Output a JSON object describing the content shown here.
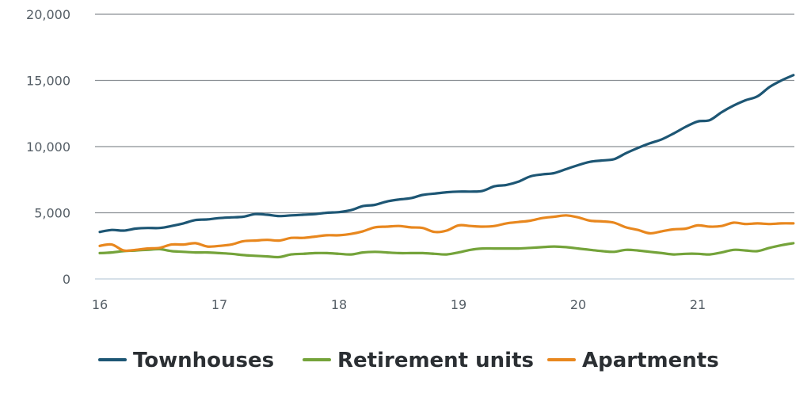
{
  "chart_data": {
    "type": "line",
    "title": "",
    "xlabel": "",
    "ylabel": "",
    "xlim": [
      16,
      21.8
    ],
    "ylim": [
      0,
      20000
    ],
    "x_ticks": [
      "16",
      "17",
      "18",
      "19",
      "20",
      "21"
    ],
    "y_ticks": [
      "0",
      "5,000",
      "10,000",
      "15,000",
      "20,000"
    ],
    "grid": "horizontal",
    "legend_position": "bottom",
    "series": [
      {
        "name": "Townhouses",
        "color": "#1d5674",
        "x": [
          16.0,
          16.1,
          16.2,
          16.3,
          16.4,
          16.5,
          16.6,
          16.7,
          16.8,
          16.9,
          17.0,
          17.1,
          17.2,
          17.3,
          17.4,
          17.5,
          17.6,
          17.7,
          17.8,
          17.9,
          18.0,
          18.1,
          18.2,
          18.3,
          18.4,
          18.5,
          18.6,
          18.7,
          18.8,
          18.9,
          19.0,
          19.1,
          19.2,
          19.3,
          19.4,
          19.5,
          19.6,
          19.7,
          19.8,
          19.9,
          20.0,
          20.1,
          20.2,
          20.3,
          20.4,
          20.5,
          20.6,
          20.7,
          20.8,
          20.9,
          21.0,
          21.1,
          21.2,
          21.3,
          21.4,
          21.5,
          21.6,
          21.7,
          21.8
        ],
        "values": [
          3550,
          3700,
          3650,
          3800,
          3850,
          3850,
          4000,
          4200,
          4450,
          4500,
          4600,
          4650,
          4700,
          4900,
          4850,
          4750,
          4800,
          4850,
          4900,
          5000,
          5050,
          5200,
          5500,
          5600,
          5850,
          6000,
          6100,
          6350,
          6450,
          6550,
          6600,
          6600,
          6650,
          7000,
          7100,
          7350,
          7750,
          7900,
          8000,
          8300,
          8600,
          8850,
          8950,
          9050,
          9500,
          9900,
          10250,
          10550,
          11000,
          11500,
          11900,
          12000,
          12600,
          13100,
          13500,
          13800,
          14500,
          15000,
          15400
        ]
      },
      {
        "name": "Retirement units",
        "color": "#74a33a",
        "x": [
          16.0,
          16.1,
          16.2,
          16.3,
          16.4,
          16.5,
          16.6,
          16.7,
          16.8,
          16.9,
          17.0,
          17.1,
          17.2,
          17.3,
          17.4,
          17.5,
          17.6,
          17.7,
          17.8,
          17.9,
          18.0,
          18.1,
          18.2,
          18.3,
          18.4,
          18.5,
          18.6,
          18.7,
          18.8,
          18.9,
          19.0,
          19.1,
          19.2,
          19.3,
          19.4,
          19.5,
          19.6,
          19.7,
          19.8,
          19.9,
          20.0,
          20.1,
          20.2,
          20.3,
          20.4,
          20.5,
          20.6,
          20.7,
          20.8,
          20.9,
          21.0,
          21.1,
          21.2,
          21.3,
          21.4,
          21.5,
          21.6,
          21.7,
          21.8
        ],
        "values": [
          1950,
          2000,
          2100,
          2150,
          2200,
          2250,
          2100,
          2050,
          2000,
          2000,
          1950,
          1900,
          1800,
          1750,
          1700,
          1650,
          1850,
          1900,
          1950,
          1950,
          1900,
          1850,
          2000,
          2050,
          2000,
          1950,
          1950,
          1950,
          1900,
          1850,
          2000,
          2200,
          2300,
          2300,
          2300,
          2300,
          2350,
          2400,
          2450,
          2400,
          2300,
          2200,
          2100,
          2050,
          2200,
          2150,
          2050,
          1950,
          1850,
          1900,
          1900,
          1850,
          2000,
          2200,
          2150,
          2100,
          2350,
          2550,
          2700
        ]
      },
      {
        "name": "Apartments",
        "color": "#e8871e",
        "x": [
          16.0,
          16.1,
          16.2,
          16.3,
          16.4,
          16.5,
          16.6,
          16.7,
          16.8,
          16.9,
          17.0,
          17.1,
          17.2,
          17.3,
          17.4,
          17.5,
          17.6,
          17.7,
          17.8,
          17.9,
          18.0,
          18.1,
          18.2,
          18.3,
          18.4,
          18.5,
          18.6,
          18.7,
          18.8,
          18.9,
          19.0,
          19.1,
          19.2,
          19.3,
          19.4,
          19.5,
          19.6,
          19.7,
          19.8,
          19.9,
          20.0,
          20.1,
          20.2,
          20.3,
          20.4,
          20.5,
          20.6,
          20.7,
          20.8,
          20.9,
          21.0,
          21.1,
          21.2,
          21.3,
          21.4,
          21.5,
          21.6,
          21.7,
          21.8
        ],
        "values": [
          2500,
          2600,
          2150,
          2200,
          2300,
          2350,
          2600,
          2600,
          2700,
          2450,
          2500,
          2600,
          2850,
          2900,
          2950,
          2900,
          3100,
          3100,
          3200,
          3300,
          3300,
          3400,
          3600,
          3900,
          3950,
          4000,
          3900,
          3850,
          3550,
          3650,
          4050,
          4000,
          3950,
          4000,
          4200,
          4300,
          4400,
          4600,
          4700,
          4800,
          4650,
          4400,
          4350,
          4250,
          3900,
          3700,
          3450,
          3600,
          3750,
          3800,
          4050,
          3950,
          4000,
          4250,
          4150,
          4200,
          4150,
          4200,
          4200
        ]
      }
    ]
  }
}
